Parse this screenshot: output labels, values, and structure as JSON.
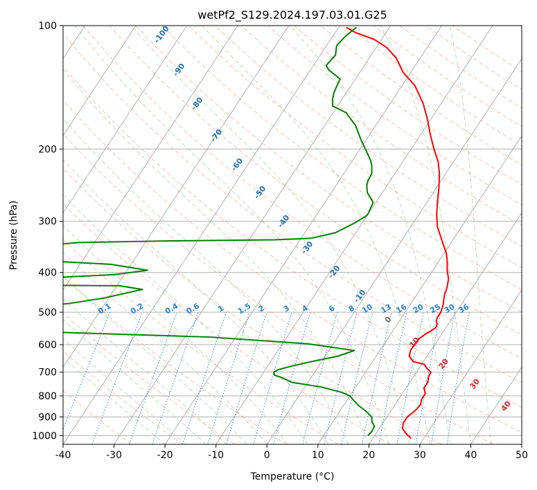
{
  "chart_data": {
    "type": "line",
    "title": "wetPf2_S129.2024.197.03.01.G25",
    "xlabel": "Temperature (°C)",
    "ylabel": "Pressure (hPa)",
    "xlim": [
      -40,
      50
    ],
    "ylim": [
      1050,
      100
    ],
    "y_scale": "log",
    "x_ticks": [
      -40,
      -30,
      -20,
      -10,
      0,
      10,
      20,
      30,
      40,
      50
    ],
    "y_ticks": [
      100,
      200,
      300,
      400,
      500,
      600,
      700,
      800,
      900,
      1000
    ],
    "grid": true,
    "skew": true,
    "series": [
      {
        "color": "#ff0000",
        "points": [
          [
            27.5,
            1015
          ],
          [
            26,
            990
          ],
          [
            24.5,
            960
          ],
          [
            24,
            930
          ],
          [
            24,
            900
          ],
          [
            24.7,
            870
          ],
          [
            25,
            840
          ],
          [
            24.5,
            815
          ],
          [
            24.5,
            790
          ],
          [
            23.5,
            765
          ],
          [
            23.5,
            740
          ],
          [
            23,
            720
          ],
          [
            22.8,
            700
          ],
          [
            21.5,
            685
          ],
          [
            20.5,
            670
          ],
          [
            18,
            660
          ],
          [
            16.5,
            640
          ],
          [
            16,
            620
          ],
          [
            16,
            600
          ],
          [
            16.2,
            580
          ],
          [
            16.8,
            565
          ],
          [
            17.5,
            555
          ],
          [
            18,
            545
          ],
          [
            17.8,
            535
          ],
          [
            17.2,
            525
          ],
          [
            17,
            515
          ],
          [
            17,
            500
          ],
          [
            16.5,
            480
          ],
          [
            15.5,
            455
          ],
          [
            15,
            435
          ],
          [
            14.2,
            415
          ],
          [
            12.8,
            395
          ],
          [
            11.6,
            375
          ],
          [
            10.5,
            360
          ],
          [
            8,
            335
          ],
          [
            5.3,
            310
          ],
          [
            3.6,
            290
          ],
          [
            2.1,
            270
          ],
          [
            0.6,
            250
          ],
          [
            -1.2,
            230
          ],
          [
            -3,
            215
          ],
          [
            -5.5,
            200
          ],
          [
            -8,
            185
          ],
          [
            -10.5,
            170
          ],
          [
            -13.5,
            155
          ],
          [
            -17.5,
            140
          ],
          [
            -21.5,
            130
          ],
          [
            -24.7,
            120
          ],
          [
            -28,
            113
          ],
          [
            -31.5,
            108
          ],
          [
            -36,
            104
          ],
          [
            -38.5,
            101
          ]
        ]
      },
      {
        "color": "#008000",
        "points": [
          [
            18.7,
            1000
          ],
          [
            18.9,
            975
          ],
          [
            18.8,
            950
          ],
          [
            17.7,
            925
          ],
          [
            17,
            900
          ],
          [
            15,
            870
          ],
          [
            13,
            845
          ],
          [
            11.3,
            820
          ],
          [
            10,
            800
          ],
          [
            8.1,
            785
          ],
          [
            3,
            760
          ],
          [
            -3,
            742
          ],
          [
            -6,
            720
          ],
          [
            -7.5,
            712
          ],
          [
            -8,
            700
          ],
          [
            -7.4,
            690
          ],
          [
            -5,
            675
          ],
          [
            -2,
            660
          ],
          [
            2.5,
            640
          ],
          [
            5,
            620
          ],
          [
            -5,
            597
          ],
          [
            -25,
            575
          ],
          [
            -55,
            560
          ],
          [
            -75,
            553
          ],
          [
            -77,
            540
          ],
          [
            -63,
            532
          ],
          [
            -62,
            520
          ],
          [
            -61,
            508
          ],
          [
            -67,
            500
          ],
          [
            -61,
            495
          ],
          [
            -58,
            487
          ],
          [
            -60,
            480
          ],
          [
            -57,
            476
          ],
          [
            -51,
            462
          ],
          [
            -44.5,
            440
          ],
          [
            -49.5,
            431
          ],
          [
            -64,
            430
          ],
          [
            -70,
            425
          ],
          [
            -71,
            421
          ],
          [
            -65,
            418
          ],
          [
            -70,
            415
          ],
          [
            -66,
            413
          ],
          [
            -52,
            405
          ],
          [
            -46,
            395
          ],
          [
            -54,
            382
          ],
          [
            -67,
            375
          ],
          [
            -76,
            372
          ],
          [
            -78,
            365
          ],
          [
            -78,
            355
          ],
          [
            -73,
            347
          ],
          [
            -63,
            338
          ],
          [
            -45,
            335
          ],
          [
            -25,
            333
          ],
          [
            -18,
            330
          ],
          [
            -14,
            320
          ],
          [
            -11.5,
            303
          ],
          [
            -10,
            290
          ],
          [
            -10.5,
            270
          ],
          [
            -13,
            255
          ],
          [
            -14,
            245
          ],
          [
            -14.4,
            238
          ],
          [
            -14.5,
            230
          ],
          [
            -15.5,
            220
          ],
          [
            -16.5,
            213
          ],
          [
            -18,
            205
          ],
          [
            -21,
            190
          ],
          [
            -24,
            175
          ],
          [
            -27.5,
            163
          ],
          [
            -31,
            157
          ],
          [
            -32,
            150
          ],
          [
            -32.5,
            145
          ],
          [
            -33,
            135
          ],
          [
            -36.5,
            128
          ],
          [
            -37.5,
            125
          ],
          [
            -37,
            118
          ],
          [
            -38,
            112
          ],
          [
            -37.5,
            106
          ],
          [
            -36.5,
            101
          ]
        ]
      }
    ],
    "annotations": {
      "dry_adiabats": [
        "-100",
        "-90",
        "-80",
        "-70",
        "-60",
        "-50",
        "-40",
        "-30",
        "-20",
        "-10",
        "0",
        "10",
        "20",
        "30",
        "40"
      ],
      "mixing_ratios": [
        "0.1",
        "0.2",
        "0.4",
        "0.6",
        "1",
        "1.5",
        "2",
        "3",
        "4",
        "6",
        "8",
        "10",
        "13",
        "16",
        "20",
        "25",
        "30",
        "36"
      ]
    }
  }
}
